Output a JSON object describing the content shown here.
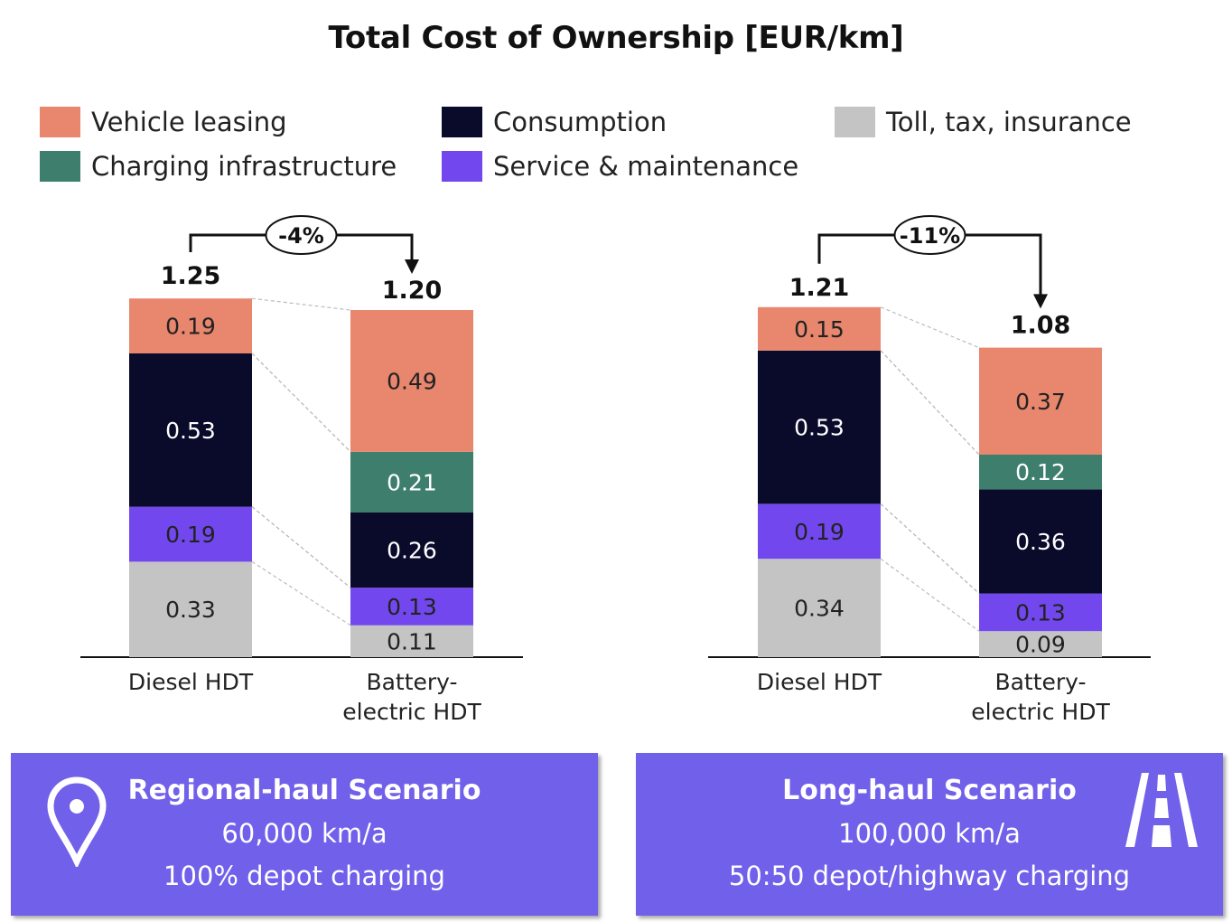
{
  "title": "Total Cost of Ownership [EUR/km]",
  "legend": [
    {
      "label": "Vehicle leasing",
      "color": "#E8866E"
    },
    {
      "label": "Consumption",
      "color": "#0A0A2A"
    },
    {
      "label": "Toll, tax, insurance",
      "color": "#C4C4C4"
    },
    {
      "label": "Charging infrastructure",
      "color": "#3D7F6C"
    },
    {
      "label": "Service & maintenance",
      "color": "#7248EE"
    }
  ],
  "chart_data": [
    {
      "type": "bar",
      "stacked": true,
      "categories": [
        "Diesel HDT",
        "Battery-electric HDT"
      ],
      "totals": [
        1.25,
        1.2
      ],
      "totals_labels": [
        "1.25",
        "1.20"
      ],
      "change_label": "-4%",
      "series": [
        {
          "name": "Toll, tax, insurance",
          "values": [
            0.33,
            0.11
          ],
          "labels": [
            "0.33",
            "0.11"
          ]
        },
        {
          "name": "Service & maintenance",
          "values": [
            0.19,
            0.13
          ],
          "labels": [
            "0.19",
            "0.13"
          ]
        },
        {
          "name": "Consumption",
          "values": [
            0.53,
            0.26
          ],
          "labels": [
            "0.53",
            "0.26"
          ]
        },
        {
          "name": "Charging infrastructure",
          "values": [
            0,
            0.21
          ],
          "labels": [
            "",
            "0.21"
          ]
        },
        {
          "name": "Vehicle leasing",
          "values": [
            0.19,
            0.49
          ],
          "labels": [
            "0.19",
            "0.49"
          ]
        }
      ]
    },
    {
      "type": "bar",
      "stacked": true,
      "categories": [
        "Diesel HDT",
        "Battery-electric HDT"
      ],
      "totals": [
        1.21,
        1.08
      ],
      "totals_labels": [
        "1.21",
        "1.08"
      ],
      "change_label": "-11%",
      "series": [
        {
          "name": "Toll, tax, insurance",
          "values": [
            0.34,
            0.09
          ],
          "labels": [
            "0.34",
            "0.09"
          ]
        },
        {
          "name": "Service & maintenance",
          "values": [
            0.19,
            0.13
          ],
          "labels": [
            "0.19",
            "0.13"
          ]
        },
        {
          "name": "Consumption",
          "values": [
            0.53,
            0.36
          ],
          "labels": [
            "0.53",
            "0.36"
          ]
        },
        {
          "name": "Charging infrastructure",
          "values": [
            0,
            0.12
          ],
          "labels": [
            "",
            "0.12"
          ]
        },
        {
          "name": "Vehicle leasing",
          "values": [
            0.15,
            0.37
          ],
          "labels": [
            "0.15",
            "0.37"
          ]
        }
      ]
    }
  ],
  "scenarios": [
    {
      "title": "Regional-haul Scenario",
      "line1": "60,000 km/a",
      "line2": "100% depot charging",
      "icon": "location-pin-icon",
      "color": "#7060EA"
    },
    {
      "title": "Long-haul Scenario",
      "line1": "100,000 km/a",
      "line2": "50:50 depot/highway charging",
      "icon": "highway-road-icon",
      "color": "#7060EA"
    }
  ]
}
